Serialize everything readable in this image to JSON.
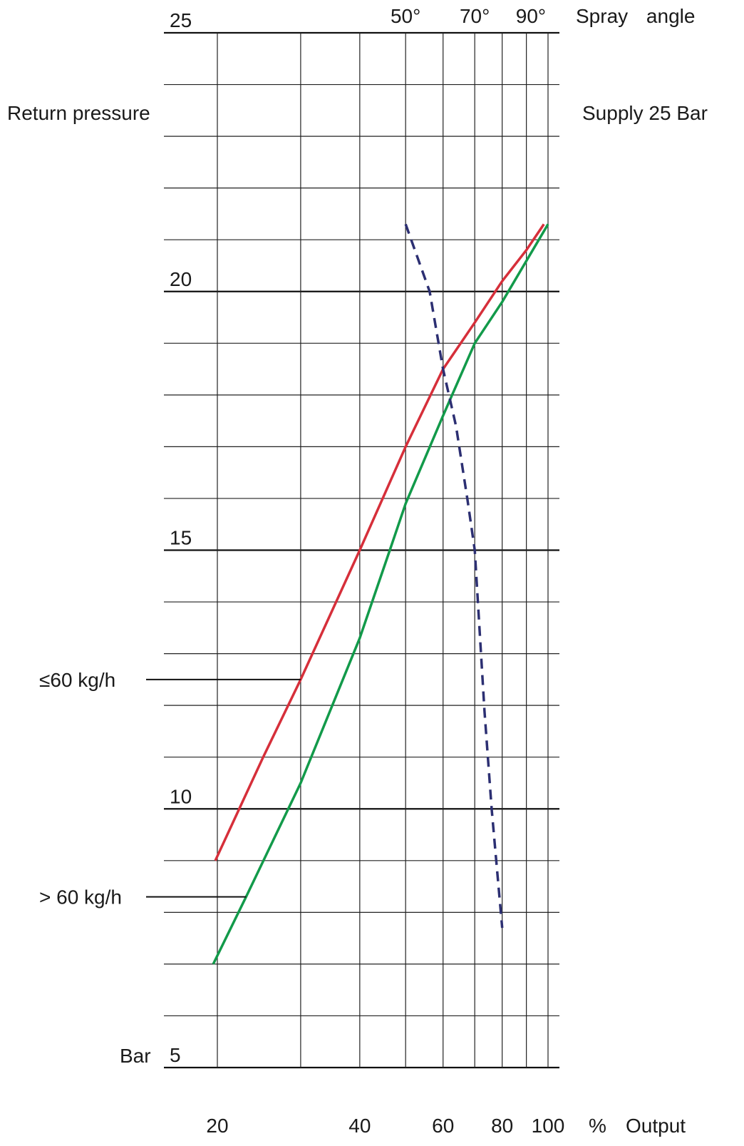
{
  "chart_data": {
    "type": "line",
    "top_label": "Spray angle",
    "subtitle": "Supply 25 Bar",
    "y_label": "Return pressure",
    "y_unit": "Bar",
    "x_unit": "%",
    "x_label": "Output",
    "xlim": [
      20,
      100
    ],
    "log_x": true,
    "xticks": [
      20,
      40,
      60,
      80,
      100
    ],
    "minor_xticks": [
      30,
      50,
      70,
      90
    ],
    "top_ticks": [
      {
        "value": 50,
        "label": "50°"
      },
      {
        "value": 70,
        "label": "70°"
      },
      {
        "value": 92,
        "label": "90°"
      }
    ],
    "ylim": [
      5,
      25
    ],
    "yticks": [
      5,
      10,
      15,
      20,
      25
    ],
    "minor_yticks": [
      6,
      7,
      8,
      9,
      11,
      12,
      13,
      14,
      16,
      17,
      18,
      19,
      21,
      22,
      23,
      24
    ],
    "grid": true,
    "series": [
      {
        "name": "≤60 kg/h",
        "color": "#d62f3a",
        "dash": false,
        "label_x": 30,
        "x": [
          19.8,
          25,
          30,
          40,
          50,
          60,
          70,
          80,
          90,
          98
        ],
        "values": [
          9.0,
          11.0,
          12.5,
          15.0,
          17.0,
          18.5,
          19.4,
          20.2,
          20.8,
          21.3
        ]
      },
      {
        "name": "> 60 kg/h",
        "color": "#129a4a",
        "dash": false,
        "label_x": 23,
        "x": [
          19.6,
          23,
          30,
          40,
          46.3,
          50,
          60,
          70,
          80,
          100
        ],
        "values": [
          7.0,
          8.3,
          10.5,
          13.3,
          15.0,
          15.9,
          17.6,
          19.0,
          19.8,
          21.3
        ]
      },
      {
        "color": "#2c2f72",
        "dash": true,
        "x": [
          50,
          56.2,
          60,
          63.9,
          67.5,
          70,
          73.4,
          76,
          80
        ],
        "values": [
          21.3,
          20.0,
          18.5,
          17.4,
          16.0,
          15.0,
          11.9,
          10.0,
          7.7
        ]
      }
    ]
  }
}
